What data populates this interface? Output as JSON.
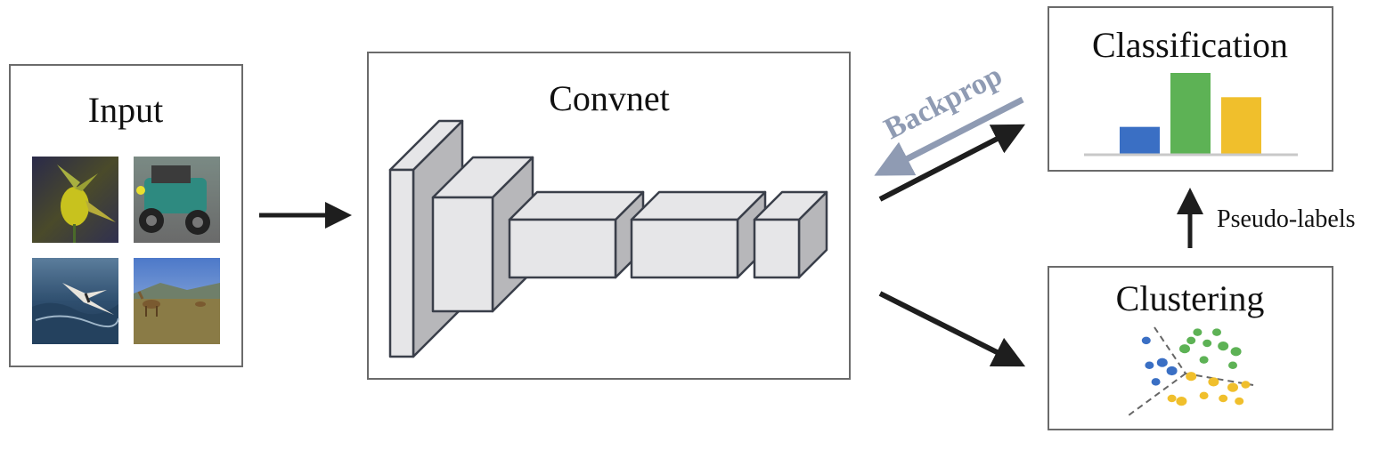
{
  "panels": {
    "input": {
      "title": "Input"
    },
    "convnet": {
      "title": "Convnet"
    },
    "classification": {
      "title": "Classification"
    },
    "clustering": {
      "title": "Clustering"
    }
  },
  "labels": {
    "backprop": "Backprop",
    "pseudo_labels": "Pseudo-labels"
  },
  "input_images": [
    "flower-photo",
    "vintage-car-photo",
    "seabird-over-waves-photo",
    "deer-in-field-photo"
  ],
  "colors": {
    "box_border": "#6b6b6b",
    "arrow": "#1e1e1e",
    "backprop": "#8f9bb3",
    "cube_front": "#e6e6e8",
    "cube_top": "#e6e6e8",
    "cube_side": "#b7b7ba",
    "cube_edge": "#3a3f4a",
    "blue": "#3a6fc4",
    "green": "#5db255",
    "yellow": "#f0bf2c",
    "baseline": "#c8c8c8",
    "divider": "#666666"
  },
  "chart_data": {
    "type": "bar",
    "categories": [
      "",
      "",
      ""
    ],
    "values": [
      1,
      3,
      2.1
    ],
    "colors": [
      "#3a6fc4",
      "#5db255",
      "#f0bf2c"
    ],
    "title": "Classification",
    "xlabel": "",
    "ylabel": "",
    "ylim": [
      0,
      3
    ],
    "grid": false
  },
  "clusters": {
    "blue": [
      [
        -0.6,
        0.55
      ],
      [
        -0.55,
        0.1
      ],
      [
        -0.35,
        0.15
      ],
      [
        -0.2,
        0.0
      ],
      [
        -0.45,
        -0.2
      ]
    ],
    "green": [
      [
        0.2,
        0.7
      ],
      [
        0.5,
        0.7
      ],
      [
        0.35,
        0.5
      ],
      [
        0.6,
        0.45
      ],
      [
        0.8,
        0.35
      ],
      [
        0.75,
        0.1
      ],
      [
        0.3,
        0.2
      ],
      [
        0.1,
        0.55
      ],
      [
        0.0,
        0.4
      ]
    ],
    "yellow": [
      [
        0.1,
        -0.1
      ],
      [
        0.45,
        -0.2
      ],
      [
        0.75,
        -0.3
      ],
      [
        0.95,
        -0.25
      ],
      [
        0.3,
        -0.45
      ],
      [
        0.6,
        -0.5
      ],
      [
        0.85,
        -0.55
      ],
      [
        -0.2,
        -0.5
      ],
      [
        -0.05,
        -0.55
      ]
    ]
  }
}
